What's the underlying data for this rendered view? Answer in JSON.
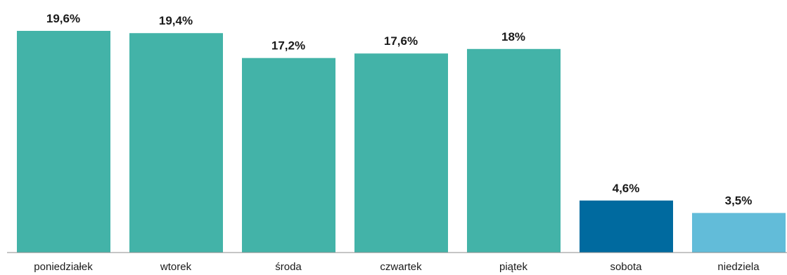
{
  "chart_data": {
    "type": "bar",
    "categories": [
      "poniedziałek",
      "wtorek",
      "środa",
      "czwartek",
      "piątek",
      "sobota",
      "niedziela"
    ],
    "values": [
      19.6,
      19.4,
      17.2,
      17.6,
      18,
      4.6,
      3.5
    ],
    "data_labels": [
      "19,6%",
      "19,4%",
      "17,2%",
      "17,6%",
      "18%",
      "4,6%",
      "3,5%"
    ],
    "bar_colors": [
      "#43b3a8",
      "#43b3a8",
      "#43b3a8",
      "#43b3a8",
      "#43b3a8",
      "#006a9f",
      "#62bcd9"
    ],
    "title": "",
    "xlabel": "",
    "ylabel": "",
    "ylim": [
      0,
      19.6
    ],
    "grid": false,
    "legend": "none"
  }
}
